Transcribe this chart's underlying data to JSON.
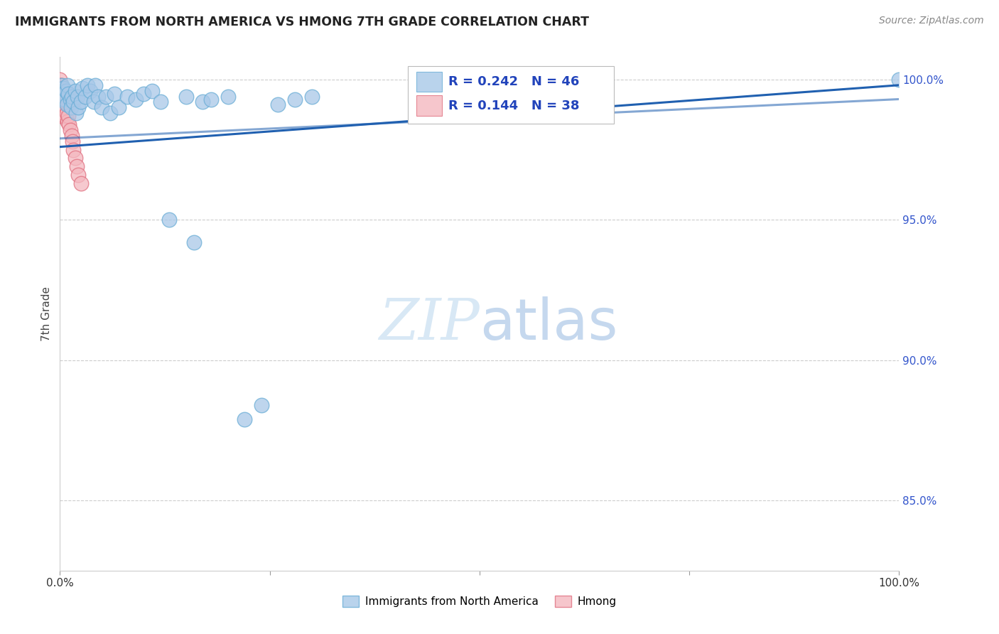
{
  "title": "IMMIGRANTS FROM NORTH AMERICA VS HMONG 7TH GRADE CORRELATION CHART",
  "source": "Source: ZipAtlas.com",
  "ylabel": "7th Grade",
  "xlim": [
    0,
    1
  ],
  "ylim": [
    0.825,
    1.008
  ],
  "yticks": [
    0.85,
    0.9,
    0.95,
    1.0
  ],
  "ytick_labels": [
    "85.0%",
    "90.0%",
    "95.0%",
    "100.0%"
  ],
  "legend_blue_label": "Immigrants from North America",
  "legend_pink_label": "Hmong",
  "R_blue": 0.242,
  "N_blue": 46,
  "R_pink": 0.144,
  "N_pink": 38,
  "blue_color": "#a8c8e8",
  "blue_edge_color": "#6baed6",
  "pink_color": "#f4b8c0",
  "pink_edge_color": "#e07080",
  "trend_color": "#2060b0",
  "blue_scatter_x": [
    0.002,
    0.004,
    0.005,
    0.006,
    0.007,
    0.008,
    0.009,
    0.01,
    0.012,
    0.013,
    0.014,
    0.016,
    0.018,
    0.019,
    0.021,
    0.022,
    0.025,
    0.027,
    0.03,
    0.033,
    0.036,
    0.04,
    0.042,
    0.045,
    0.05,
    0.055,
    0.06,
    0.065,
    0.07,
    0.08,
    0.09,
    0.1,
    0.11,
    0.12,
    0.13,
    0.15,
    0.16,
    0.17,
    0.18,
    0.2,
    0.22,
    0.24,
    0.26,
    0.28,
    0.3,
    1.0
  ],
  "blue_scatter_y": [
    0.998,
    0.997,
    0.995,
    0.993,
    0.996,
    0.991,
    0.998,
    0.995,
    0.993,
    0.99,
    0.994,
    0.992,
    0.996,
    0.988,
    0.994,
    0.99,
    0.992,
    0.997,
    0.994,
    0.998,
    0.996,
    0.992,
    0.998,
    0.994,
    0.99,
    0.994,
    0.988,
    0.995,
    0.99,
    0.994,
    0.993,
    0.995,
    0.996,
    0.992,
    0.95,
    0.994,
    0.942,
    0.992,
    0.993,
    0.994,
    0.879,
    0.884,
    0.991,
    0.993,
    0.994,
    1.0
  ],
  "pink_scatter_x": [
    0.0,
    0.0,
    0.0,
    0.0,
    0.0,
    0.0,
    0.0,
    0.0,
    0.001,
    0.001,
    0.001,
    0.001,
    0.002,
    0.002,
    0.002,
    0.003,
    0.003,
    0.003,
    0.004,
    0.004,
    0.005,
    0.005,
    0.006,
    0.006,
    0.007,
    0.008,
    0.009,
    0.01,
    0.01,
    0.011,
    0.012,
    0.014,
    0.015,
    0.016,
    0.018,
    0.02,
    0.022,
    0.025
  ],
  "pink_scatter_y": [
    1.0,
    0.998,
    0.997,
    0.995,
    0.993,
    0.991,
    0.989,
    0.987,
    0.998,
    0.995,
    0.991,
    0.988,
    0.997,
    0.993,
    0.989,
    0.996,
    0.992,
    0.987,
    0.994,
    0.99,
    0.993,
    0.988,
    0.992,
    0.987,
    0.99,
    0.988,
    0.985,
    0.991,
    0.987,
    0.984,
    0.982,
    0.98,
    0.978,
    0.975,
    0.972,
    0.969,
    0.966,
    0.963
  ],
  "trend_blue_x0": 0.0,
  "trend_blue_y0": 0.976,
  "trend_blue_x1": 1.0,
  "trend_blue_y1": 0.998,
  "trend_pink_x0": 0.0,
  "trend_pink_y0": 0.979,
  "trend_pink_x1": 1.0,
  "trend_pink_y1": 0.993,
  "watermark_zip": "ZIP",
  "watermark_atlas": "atlas",
  "watermark_color": "#d8e8f5"
}
